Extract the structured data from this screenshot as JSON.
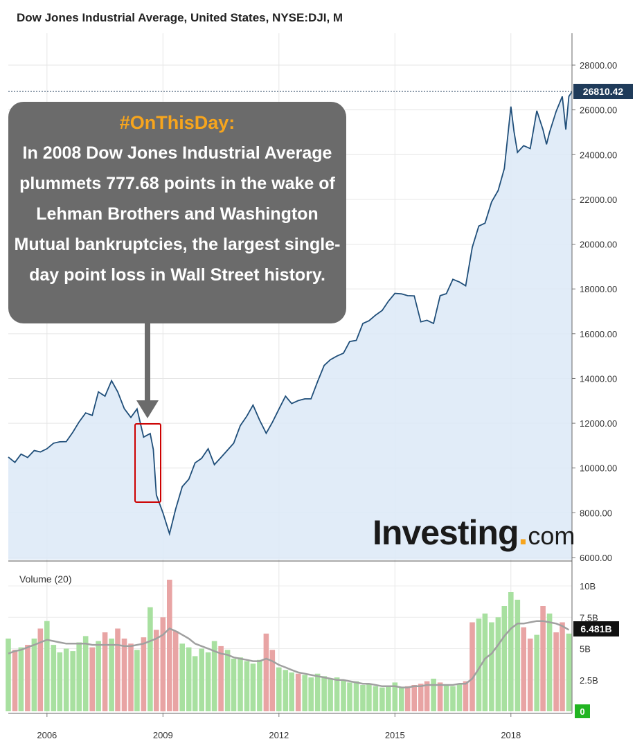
{
  "chart_data": [
    {
      "type": "area",
      "title": "Dow Jones Industrial Average, United States, NYSE:DJI, M",
      "xlabel": "",
      "ylabel": "",
      "x_ticks": [
        "2006",
        "2009",
        "2012",
        "2015",
        "2018"
      ],
      "y_ticks": [
        "6000.00",
        "8000.00",
        "10000.00",
        "12000.00",
        "14000.00",
        "16000.00",
        "18000.00",
        "20000.00",
        "22000.00",
        "24000.00",
        "26000.00",
        "28000.00"
      ],
      "ylim": [
        6000,
        28500
      ],
      "xlim": [
        2005.0,
        2019.58
      ],
      "grid": true,
      "last_value": "26810.42",
      "series": [
        {
          "x": [
            2005.0,
            2005.17,
            2005.33,
            2005.5,
            2005.67,
            2005.83,
            2006.0,
            2006.17,
            2006.33,
            2006.5,
            2006.67,
            2006.83,
            2007.0,
            2007.17,
            2007.33,
            2007.5,
            2007.67,
            2007.83,
            2008.0,
            2008.17,
            2008.33,
            2008.5,
            2008.67,
            2008.75,
            2008.83,
            2009.0,
            2009.17,
            2009.33,
            2009.5,
            2009.67,
            2009.83,
            2010.0,
            2010.17,
            2010.33,
            2010.5,
            2010.67,
            2010.83,
            2011.0,
            2011.17,
            2011.33,
            2011.5,
            2011.67,
            2011.83,
            2012.0,
            2012.17,
            2012.33,
            2012.5,
            2012.67,
            2012.83,
            2013.0,
            2013.17,
            2013.33,
            2013.5,
            2013.67,
            2013.83,
            2014.0,
            2014.17,
            2014.33,
            2014.5,
            2014.67,
            2014.83,
            2015.0,
            2015.17,
            2015.33,
            2015.5,
            2015.67,
            2015.83,
            2016.0,
            2016.17,
            2016.33,
            2016.5,
            2016.67,
            2016.83,
            2017.0,
            2017.17,
            2017.33,
            2017.5,
            2017.67,
            2017.83,
            2018.0,
            2018.08,
            2018.17,
            2018.33,
            2018.5,
            2018.67,
            2018.83,
            2018.92,
            2019.0,
            2019.17,
            2019.33,
            2019.42,
            2019.5,
            2019.58
          ],
          "values": [
            10490,
            10250,
            10620,
            10470,
            10780,
            10720,
            10860,
            11110,
            11170,
            11180,
            11600,
            12060,
            12460,
            12350,
            13400,
            13210,
            13900,
            13400,
            12650,
            12260,
            12640,
            11380,
            11540,
            10830,
            8800,
            8000,
            7060,
            8170,
            9170,
            9500,
            10230,
            10430,
            10860,
            10150,
            10470,
            10800,
            11110,
            11890,
            12320,
            12810,
            12140,
            11550,
            12040,
            12630,
            13210,
            12880,
            13010,
            13090,
            13090,
            13860,
            14580,
            14840,
            15000,
            15130,
            15650,
            15700,
            16460,
            16580,
            16830,
            17040,
            17450,
            17800,
            17780,
            17700,
            17690,
            16530,
            16600,
            16460,
            17700,
            17790,
            18430,
            18310,
            18140,
            19860,
            20810,
            20940,
            21890,
            22400,
            23380,
            26150,
            25030,
            24100,
            24400,
            24270,
            25960,
            25120,
            24460,
            25000,
            25930,
            26600,
            25120,
            26600,
            26810
          ]
        }
      ]
    },
    {
      "type": "bar",
      "title": "Volume (20)",
      "ylim": [
        0,
        11
      ],
      "y_ticks": [
        "0",
        "2.5B",
        "5B",
        "7.5B",
        "10B"
      ],
      "last_value": "6.481B",
      "series": [
        {
          "name": "Volume (20)",
          "x": [
            2005.0,
            2005.17,
            2005.33,
            2005.5,
            2005.67,
            2005.83,
            2006.0,
            2006.17,
            2006.33,
            2006.5,
            2006.67,
            2006.83,
            2007.0,
            2007.17,
            2007.33,
            2007.5,
            2007.67,
            2007.83,
            2008.0,
            2008.17,
            2008.33,
            2008.5,
            2008.67,
            2008.83,
            2009.0,
            2009.17,
            2009.33,
            2009.5,
            2009.67,
            2009.83,
            2010.0,
            2010.17,
            2010.33,
            2010.5,
            2010.67,
            2010.83,
            2011.0,
            2011.17,
            2011.33,
            2011.5,
            2011.67,
            2011.83,
            2012.0,
            2012.17,
            2012.33,
            2012.5,
            2012.67,
            2012.83,
            2013.0,
            2013.17,
            2013.33,
            2013.5,
            2013.67,
            2013.83,
            2014.0,
            2014.17,
            2014.33,
            2014.5,
            2014.67,
            2014.83,
            2015.0,
            2015.17,
            2015.33,
            2015.5,
            2015.67,
            2015.83,
            2016.0,
            2016.17,
            2016.33,
            2016.5,
            2016.67,
            2016.83,
            2017.0,
            2017.17,
            2017.33,
            2017.5,
            2017.67,
            2017.83,
            2018.0,
            2018.17,
            2018.33,
            2018.5,
            2018.67,
            2018.83,
            2019.0,
            2019.17,
            2019.33,
            2019.5
          ],
          "values": [
            5.8,
            4.9,
            5.1,
            5.3,
            5.8,
            6.6,
            7.2,
            5.3,
            4.7,
            5.0,
            4.8,
            5.5,
            6.0,
            5.1,
            5.6,
            6.3,
            5.8,
            6.6,
            5.8,
            5.4,
            4.9,
            5.9,
            8.3,
            6.5,
            7.5,
            10.5,
            6.4,
            5.4,
            5.1,
            4.4,
            5.0,
            4.7,
            5.6,
            5.2,
            4.9,
            4.2,
            4.3,
            4.0,
            3.8,
            4.1,
            6.2,
            4.9,
            3.5,
            3.3,
            3.1,
            3.0,
            2.9,
            2.7,
            3.0,
            2.8,
            2.6,
            2.7,
            2.5,
            2.3,
            2.4,
            2.1,
            2.2,
            2.0,
            1.9,
            2.0,
            2.3,
            1.9,
            2.0,
            2.1,
            2.2,
            2.4,
            2.6,
            2.3,
            2.1,
            2.0,
            2.2,
            2.4,
            7.1,
            7.4,
            7.8,
            7.1,
            7.5,
            8.4,
            9.5,
            8.9,
            6.7,
            5.8,
            6.1,
            8.4,
            7.8,
            6.3,
            7.1,
            6.2
          ],
          "ma": [
            4.6,
            4.8,
            4.9,
            5.1,
            5.3,
            5.5,
            5.7,
            5.6,
            5.5,
            5.4,
            5.4,
            5.4,
            5.4,
            5.3,
            5.3,
            5.3,
            5.3,
            5.3,
            5.2,
            5.2,
            5.3,
            5.4,
            5.6,
            5.8,
            6.1,
            6.6,
            6.4,
            6.1,
            5.8,
            5.4,
            5.2,
            5.0,
            4.8,
            4.6,
            4.5,
            4.3,
            4.2,
            4.1,
            4.0,
            4.0,
            4.2,
            4.0,
            3.7,
            3.5,
            3.3,
            3.1,
            3.0,
            2.9,
            2.8,
            2.7,
            2.6,
            2.5,
            2.5,
            2.4,
            2.3,
            2.2,
            2.2,
            2.1,
            2.0,
            2.0,
            2.0,
            1.9,
            1.9,
            2.0,
            2.0,
            2.1,
            2.1,
            2.1,
            2.1,
            2.1,
            2.2,
            2.2,
            2.6,
            3.4,
            4.2,
            4.6,
            5.3,
            6.0,
            6.6,
            7.0,
            7.0,
            7.1,
            7.2,
            7.2,
            7.1,
            7.0,
            6.8,
            6.5
          ]
        }
      ]
    }
  ],
  "callout": {
    "heading": "#OnThisDay:",
    "body": "In 2008 Dow Jones Industrial Average plummets 777.68 points in the wake of Lehman Brothers and Washington Mutual bankruptcies, the largest single-day point loss in Wall Street history."
  },
  "watermark": {
    "main": "Investing",
    "sub": "com"
  },
  "colors": {
    "line": "#1f4e79",
    "area": "#dce9f7",
    "volume_up": "#a8e0a0",
    "volume_down": "#e8a4a4",
    "moving_average": "#a0a0a0",
    "accent": "#f7a51d",
    "price_label": "#1f3b5a",
    "highlight": "#cc0000"
  }
}
